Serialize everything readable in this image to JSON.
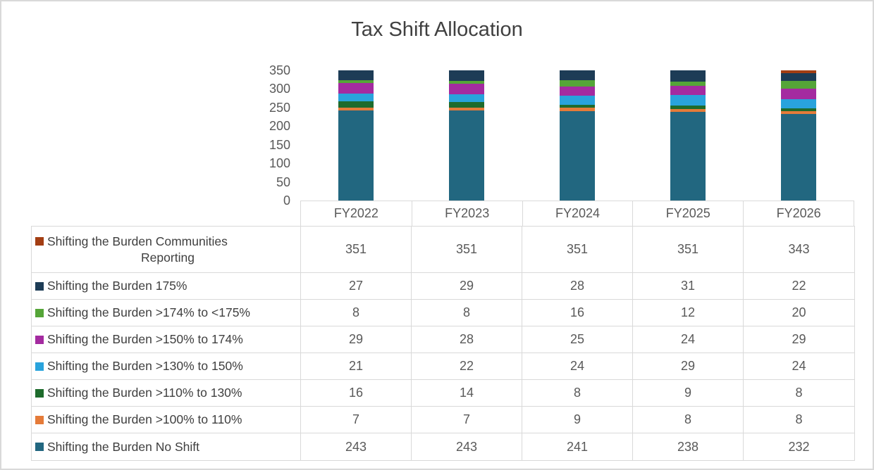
{
  "title": "Tax Shift Allocation",
  "chart_data": {
    "type": "bar",
    "stacked": true,
    "title": "Tax Shift Allocation",
    "categories": [
      "FY2022",
      "FY2023",
      "FY2024",
      "FY2025",
      "FY2026"
    ],
    "series": [
      {
        "name": "Shifting the Burden Communities Reporting",
        "color": "#A33E13",
        "values": [
          351,
          351,
          351,
          351,
          343
        ]
      },
      {
        "name": "Shifting the Burden 175%",
        "color": "#1D3C56",
        "values": [
          27,
          29,
          28,
          31,
          22
        ]
      },
      {
        "name": "Shifting the Burden >174% to <175%",
        "color": "#55A538",
        "values": [
          8,
          8,
          16,
          12,
          20
        ]
      },
      {
        "name": "Shifting the Burden >150% to 174%",
        "color": "#A42BA0",
        "values": [
          29,
          28,
          25,
          24,
          29
        ]
      },
      {
        "name": "Shifting the Burden >130% to 150%",
        "color": "#29A3DC",
        "values": [
          21,
          22,
          24,
          29,
          24
        ]
      },
      {
        "name": "Shifting the Burden >110% to 130%",
        "color": "#1E6B2C",
        "values": [
          16,
          14,
          8,
          9,
          8
        ]
      },
      {
        "name": "Shifting the Burden >100% to 110%",
        "color": "#E57B39",
        "values": [
          7,
          7,
          9,
          8,
          8
        ]
      },
      {
        "name": "Shifting the Burden No Shift",
        "color": "#226780",
        "values": [
          243,
          243,
          241,
          238,
          232
        ]
      }
    ],
    "ylim": [
      0,
      350
    ],
    "yticks": [
      0,
      50,
      100,
      150,
      200,
      250,
      300,
      350
    ],
    "grid": false,
    "legend_position": "table-left",
    "text_color": "#595959",
    "title_color": "#404040",
    "border_color": "#D9D9D9"
  }
}
